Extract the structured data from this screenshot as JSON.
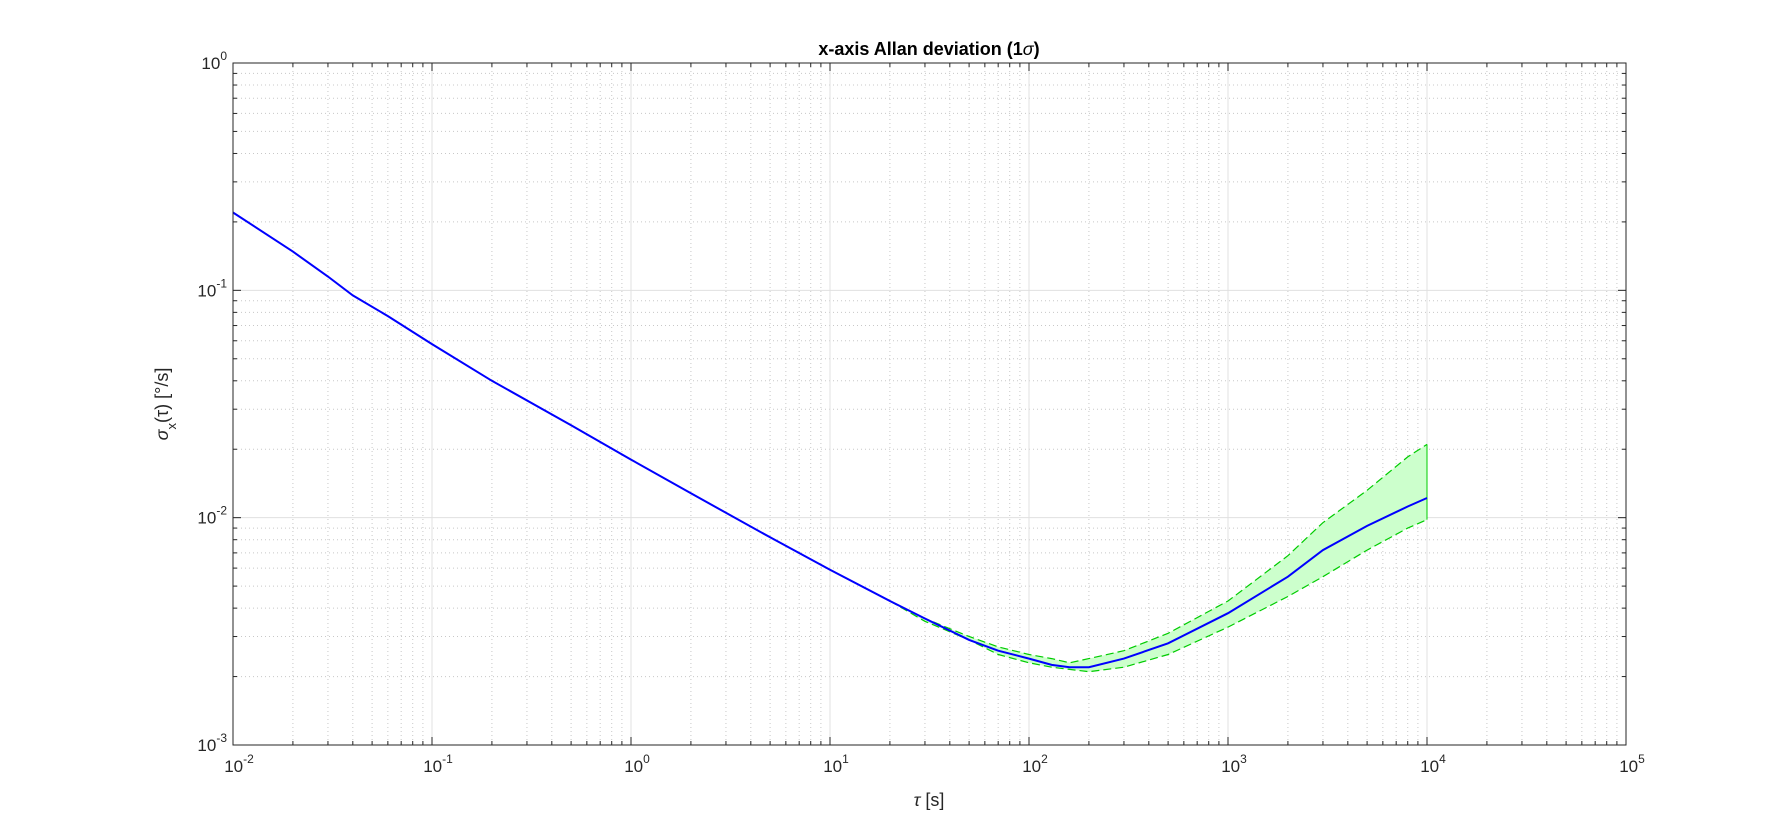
{
  "chart_data": {
    "type": "line",
    "title": "x-axis Allan deviation (1σ)",
    "title_text": "x-axis Allan deviation (1",
    "title_sigma": "σ",
    "title_close": ")",
    "xlabel": "τ [s]",
    "xlabel_symbol": "τ",
    "xlabel_unit": " [s]",
    "ylabel": "σx(τ) [°/s]",
    "ylabel_sigma": "σ",
    "ylabel_sub": "x",
    "ylabel_rest": "(τ) [°/s]",
    "x_scale": "log",
    "y_scale": "log",
    "xlim": [
      0.01,
      100000
    ],
    "ylim": [
      0.001,
      1
    ],
    "grid": true,
    "x_ticks": [
      {
        "value": 0.01,
        "base": "10",
        "exp": "-2"
      },
      {
        "value": 0.1,
        "base": "10",
        "exp": "-1"
      },
      {
        "value": 1,
        "base": "10",
        "exp": "0"
      },
      {
        "value": 10,
        "base": "10",
        "exp": "1"
      },
      {
        "value": 100,
        "base": "10",
        "exp": "2"
      },
      {
        "value": 1000,
        "base": "10",
        "exp": "3"
      },
      {
        "value": 10000,
        "base": "10",
        "exp": "4"
      },
      {
        "value": 100000,
        "base": "10",
        "exp": "5"
      }
    ],
    "y_ticks": [
      {
        "value": 0.001,
        "base": "10",
        "exp": "-3"
      },
      {
        "value": 0.01,
        "base": "10",
        "exp": "-2"
      },
      {
        "value": 0.1,
        "base": "10",
        "exp": "-1"
      },
      {
        "value": 1,
        "base": "10",
        "exp": "0"
      }
    ],
    "colors": {
      "line": "#0000ff",
      "band_fill": "#ccffcc",
      "band_edge": "#00cc00",
      "grid_major": "#e0e0e0",
      "grid_minor": "#c8c8c8",
      "axis": "#262626"
    },
    "series": [
      {
        "role": "mean",
        "x": [
          0.01,
          0.02,
          0.03,
          0.04,
          0.06,
          0.1,
          0.2,
          0.5,
          1,
          2,
          5,
          10,
          20,
          30,
          50,
          70,
          100,
          130,
          160,
          200,
          300,
          500,
          1000,
          2000,
          3000,
          5000,
          8000,
          10000
        ],
        "y": [
          0.22,
          0.148,
          0.115,
          0.095,
          0.077,
          0.058,
          0.04,
          0.0255,
          0.018,
          0.0128,
          0.0082,
          0.0059,
          0.0043,
          0.0036,
          0.0029,
          0.0026,
          0.0024,
          0.00225,
          0.0022,
          0.0022,
          0.0024,
          0.0028,
          0.0038,
          0.0055,
          0.0072,
          0.0092,
          0.0112,
          0.0122
        ]
      },
      {
        "role": "upper-bound",
        "x": [
          20,
          30,
          50,
          70,
          100,
          130,
          160,
          200,
          300,
          500,
          1000,
          2000,
          3000,
          5000,
          8000,
          10000
        ],
        "y": [
          0.0043,
          0.0036,
          0.003,
          0.0027,
          0.0025,
          0.0024,
          0.0023,
          0.0024,
          0.0026,
          0.0031,
          0.0043,
          0.0068,
          0.0095,
          0.0132,
          0.0185,
          0.021
        ]
      },
      {
        "role": "lower-bound",
        "x": [
          20,
          30,
          50,
          70,
          100,
          130,
          160,
          200,
          300,
          500,
          1000,
          2000,
          3000,
          5000,
          8000,
          10000
        ],
        "y": [
          0.0043,
          0.0035,
          0.0029,
          0.0025,
          0.0023,
          0.0022,
          0.00215,
          0.0021,
          0.0022,
          0.0025,
          0.0033,
          0.0045,
          0.0055,
          0.0072,
          0.009,
          0.0098
        ]
      }
    ]
  }
}
